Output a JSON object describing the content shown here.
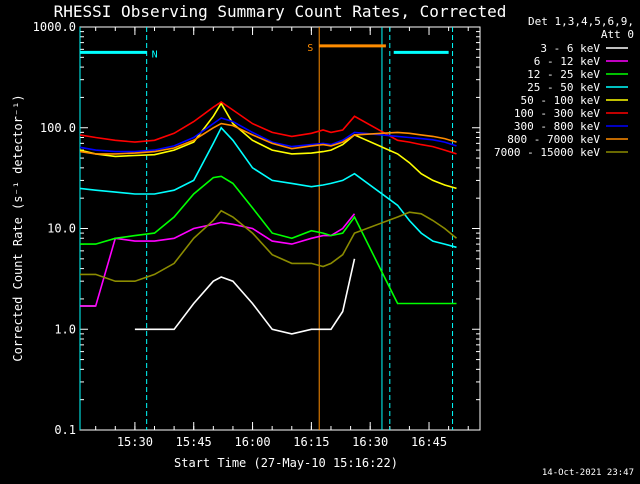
{
  "chart_data": {
    "type": "line",
    "title": "RHESSI Observing Summary Count Rates, Corrected",
    "xlabel": "Start Time (27-May-10 15:16:22)",
    "ylabel": "Corrected Count Rate (s⁻¹ detector⁻¹)",
    "y_scale": "log",
    "ylim": [
      0.1,
      1000
    ],
    "y_ticks": [
      "0.1",
      "1.0",
      "10.0",
      "100.0",
      "1000.0"
    ],
    "xlim": [
      "15:16",
      "16:58"
    ],
    "x_ticks": [
      "15:30",
      "15:45",
      "16:00",
      "16:15",
      "16:30",
      "16:45"
    ],
    "legend_header": [
      "Det 1,3,4,5,6,9,",
      "Att 0"
    ],
    "legend_position": "top-right outside",
    "footer_date": "14-Oct-2021 23:47",
    "flags": [
      {
        "label": "N",
        "color": "#00ffff",
        "start": "15:16",
        "end": "15:33",
        "y": 560
      },
      {
        "label": "",
        "color": "#00ffff",
        "start": "16:36",
        "end": "16:50",
        "y": 560
      },
      {
        "label": "S",
        "color": "#ff8c00",
        "start": "16:17",
        "end": "16:34",
        "y": 650
      }
    ],
    "vlines": [
      {
        "time": "15:16",
        "color": "#00ffff",
        "style": "solid"
      },
      {
        "time": "15:33",
        "color": "#00ffff",
        "style": "dashed"
      },
      {
        "time": "16:35",
        "color": "#00ffff",
        "style": "dashed"
      },
      {
        "time": "16:51",
        "color": "#00ffff",
        "style": "dashed"
      },
      {
        "time": "16:17",
        "color": "#ff8c00",
        "style": "solid"
      },
      {
        "time": "16:33",
        "color": "#00ffff",
        "style": "solid"
      }
    ],
    "x": [
      "15:16",
      "15:20",
      "15:25",
      "15:30",
      "15:35",
      "15:40",
      "15:45",
      "15:50",
      "15:52",
      "15:55",
      "16:00",
      "16:05",
      "16:10",
      "16:15",
      "16:18",
      "16:20",
      "16:23",
      "16:26",
      "16:37",
      "16:40",
      "16:43",
      "16:46",
      "16:49",
      "16:52"
    ],
    "series": [
      {
        "name": "3 - 6 keV",
        "color": "#ffffff",
        "values": [
          1.7,
          1.7,
          null,
          1.0,
          1.0,
          1.0,
          1.8,
          3.0,
          3.3,
          3.0,
          1.8,
          1.0,
          0.9,
          1.0,
          1.0,
          1.0,
          1.5,
          5.0,
          null,
          null,
          null,
          null,
          null,
          null
        ]
      },
      {
        "name": "6 - 12 keV",
        "color": "#ff00ff",
        "values": [
          1.7,
          1.7,
          8.0,
          7.5,
          7.5,
          8.0,
          10.0,
          11.0,
          11.5,
          11.0,
          10.0,
          7.5,
          7.0,
          8.0,
          8.5,
          8.5,
          10.0,
          14.0,
          null,
          null,
          null,
          null,
          null,
          null
        ]
      },
      {
        "name": "12 - 25 keV",
        "color": "#00ff00",
        "values": [
          7.0,
          7.0,
          8.0,
          8.5,
          9.0,
          13.0,
          22.0,
          32.0,
          33.0,
          28.0,
          16.0,
          9.0,
          8.0,
          9.5,
          9.0,
          8.5,
          9.0,
          13.0,
          1.8,
          1.8,
          1.8,
          1.8,
          1.8,
          1.8
        ]
      },
      {
        "name": "25 - 50 keV",
        "color": "#00ffff",
        "values": [
          25.0,
          24.0,
          23.0,
          22.0,
          22.0,
          24.0,
          30.0,
          70.0,
          100.0,
          75.0,
          40.0,
          30.0,
          28.0,
          26.0,
          27.0,
          28.0,
          30.0,
          35.0,
          17.0,
          12.0,
          9.0,
          7.5,
          7.0,
          6.5
        ]
      },
      {
        "name": "50 - 100 keV",
        "color": "#ffff00",
        "values": [
          60.0,
          55.0,
          52.0,
          53.0,
          54.0,
          60.0,
          72.0,
          130.0,
          175.0,
          110.0,
          75.0,
          60.0,
          55.0,
          56.0,
          58.0,
          60.0,
          68.0,
          85.0,
          55.0,
          45.0,
          35.0,
          30.0,
          27.0,
          25.0
        ]
      },
      {
        "name": "100 - 300 keV",
        "color": "#ff0000",
        "values": [
          85.0,
          80.0,
          75.0,
          72.0,
          75.0,
          88.0,
          115.0,
          160.0,
          180.0,
          150.0,
          110.0,
          90.0,
          82.0,
          88.0,
          95.0,
          90.0,
          95.0,
          130.0,
          75.0,
          72.0,
          68.0,
          65.0,
          60.0,
          55.0
        ]
      },
      {
        "name": "300 - 800 keV",
        "color": "#0000ff",
        "values": [
          64.0,
          60.0,
          58.0,
          58.0,
          60.0,
          66.0,
          80.0,
          110.0,
          125.0,
          115.0,
          90.0,
          72.0,
          65.0,
          68.0,
          70.0,
          68.0,
          75.0,
          90.0,
          82.0,
          80.0,
          78.0,
          76.0,
          72.0,
          66.0
        ]
      },
      {
        "name": "800 - 7000 keV",
        "color": "#ff8c00",
        "values": [
          58.0,
          55.0,
          55.0,
          56.0,
          58.0,
          63.0,
          75.0,
          100.0,
          110.0,
          105.0,
          85.0,
          70.0,
          62.0,
          66.0,
          68.0,
          66.0,
          72.0,
          85.0,
          90.0,
          88.0,
          85.0,
          82.0,
          78.0,
          72.0
        ]
      },
      {
        "name": "7000 - 15000 keV",
        "color": "#8b8b00",
        "values": [
          3.5,
          3.5,
          3.0,
          3.0,
          3.5,
          4.5,
          8.0,
          12.0,
          15.0,
          13.0,
          9.0,
          5.5,
          4.5,
          4.5,
          4.2,
          4.5,
          5.5,
          9.0,
          13.0,
          14.5,
          14.0,
          12.0,
          10.0,
          8.0
        ]
      }
    ]
  }
}
